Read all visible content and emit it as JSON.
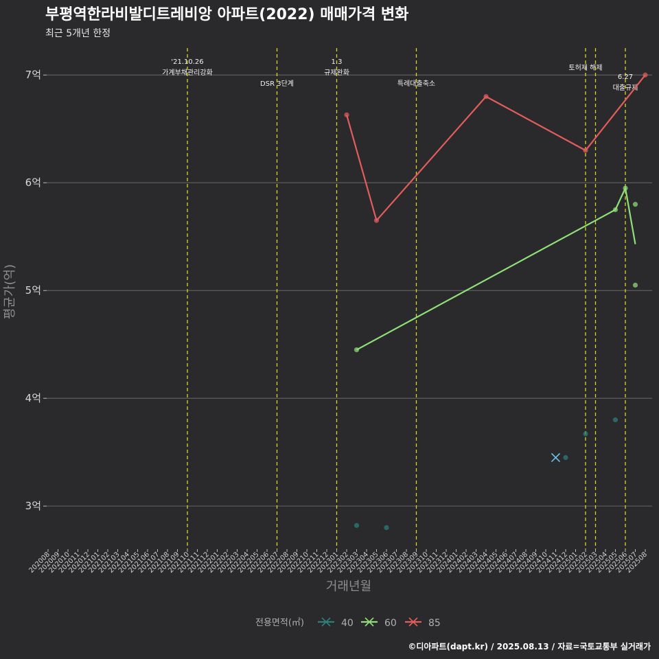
{
  "title": "부평역한라비발디트레비앙 아파트(2022) 매매가격 변화",
  "subtitle": "최근 5개년 한정",
  "caption": "©디아파트(dapt.kr) / 2025.08.13 / 자료=국토교통부 실거래가",
  "chart_data": {
    "type": "line",
    "xlabel": "거래년월",
    "ylabel": "평균가(억)",
    "ylim": [
      2.6,
      7.25
    ],
    "yticks": [
      3,
      4,
      5,
      6,
      7
    ],
    "ytick_labels": [
      "3억",
      "4억",
      "5억",
      "6억",
      "7억"
    ],
    "grid": true,
    "categories": [
      "202008",
      "202009",
      "202010",
      "202011",
      "202012",
      "202101",
      "202102",
      "202103",
      "202104",
      "202105",
      "202106",
      "202107",
      "202108",
      "202109",
      "202110",
      "202111",
      "202112",
      "202201",
      "202202",
      "202203",
      "202204",
      "202205",
      "202206",
      "202207",
      "202208",
      "202209",
      "202210",
      "202211",
      "202212",
      "202301",
      "202302",
      "202303",
      "202304",
      "202305",
      "202306",
      "202307",
      "202308",
      "202309",
      "202310",
      "202311",
      "202312",
      "202401",
      "202402",
      "202403",
      "202404",
      "202405",
      "202406",
      "202407",
      "202408",
      "202409",
      "202410",
      "202411",
      "202412",
      "202501",
      "202502",
      "202503",
      "202504",
      "202505",
      "202506",
      "202507",
      "202508"
    ],
    "legend": {
      "title": "전용면적(㎡)",
      "position": "bottom",
      "entries": [
        "40",
        "60",
        "85"
      ]
    },
    "colors": {
      "40": "#2c7f7a",
      "60": "#90e07a",
      "85": "#e35d5d",
      "vline": "#d6d62a",
      "grid": "#5e5e5e"
    },
    "series": [
      {
        "name": "40",
        "line": [],
        "points": [
          [
            "202303",
            2.82
          ],
          [
            "202306",
            2.8
          ],
          [
            "202412",
            3.45
          ],
          [
            "202502",
            3.67
          ],
          [
            "202505",
            3.8
          ]
        ],
        "cross": [
          [
            "202411",
            3.45
          ]
        ]
      },
      {
        "name": "60",
        "line": [
          [
            "202303",
            4.45
          ],
          [
            "202505",
            5.75
          ],
          [
            "202506",
            5.95
          ],
          [
            "202507",
            5.43
          ]
        ],
        "points": [
          [
            "202303",
            4.45
          ],
          [
            "202505",
            5.75
          ],
          [
            "202506",
            5.95
          ],
          [
            "202507",
            5.8
          ],
          [
            "202507",
            5.05
          ]
        ]
      },
      {
        "name": "85",
        "line": [
          [
            "202302",
            6.63
          ],
          [
            "202305",
            5.65
          ],
          [
            "202404",
            6.8
          ],
          [
            "202502",
            6.3
          ],
          [
            "202508",
            7.0
          ]
        ],
        "points": [
          [
            "202302",
            6.63
          ],
          [
            "202305",
            5.65
          ],
          [
            "202404",
            6.8
          ],
          [
            "202502",
            6.3
          ],
          [
            "202508",
            7.0
          ]
        ]
      }
    ],
    "events": [
      {
        "date": "202110",
        "lines": [
          "'21.10.26",
          "가계부채관리강화"
        ],
        "row": "top"
      },
      {
        "date": "202207",
        "lines": [
          "DSR 3단계"
        ],
        "row": "low"
      },
      {
        "date": "202301",
        "lines": [
          "1.3",
          "규제완화"
        ],
        "row": "top"
      },
      {
        "date": "202309",
        "lines": [
          "특례대출축소"
        ],
        "row": "low"
      },
      {
        "date": "202502",
        "lines": [
          "토허제 해제"
        ],
        "row": "mid"
      },
      {
        "date": "202503",
        "lines": [],
        "row": "none"
      },
      {
        "date": "202506",
        "lines": [
          "6.27",
          "대출규제"
        ],
        "row": "low2"
      }
    ]
  }
}
